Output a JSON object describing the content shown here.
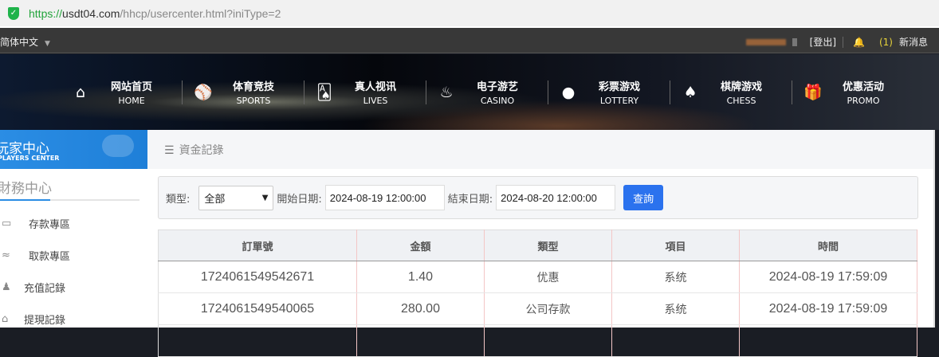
{
  "browser": {
    "url_protocol": "https://",
    "url_domain": "usdt04.com",
    "url_path": "/hhcp/usercenter.html?iniType=2"
  },
  "topbar": {
    "language": "简体中文",
    "logout": "[登出]",
    "message_count": "(1)",
    "messages": "新消息"
  },
  "nav": [
    {
      "cn": "网站首页",
      "en": "HOME",
      "icon": "home-icon",
      "glyph": "⌂"
    },
    {
      "cn": "体育竞技",
      "en": "SPORTS",
      "icon": "ball-icon",
      "glyph": "⚾"
    },
    {
      "cn": "真人视讯",
      "en": "LIVES",
      "icon": "cards-icon",
      "glyph": "🂡"
    },
    {
      "cn": "电子游艺",
      "en": "CASINO",
      "icon": "slot-icon",
      "glyph": "♨"
    },
    {
      "cn": "彩票游戏",
      "en": "LOTTERY",
      "icon": "lottery-balls-icon",
      "glyph": "●"
    },
    {
      "cn": "棋牌游戏",
      "en": "CHESS",
      "icon": "spade-icon",
      "glyph": "♠"
    },
    {
      "cn": "优惠活动",
      "en": "PROMO",
      "icon": "gift-icon",
      "glyph": "🎁"
    }
  ],
  "sidebar": {
    "header_cn": "玩家中心",
    "header_en": "PLAYERS CENTER",
    "section": "財務中心",
    "items": [
      {
        "label": "存款專區",
        "glyph": "▭"
      },
      {
        "label": "取款專區",
        "glyph": "≈"
      },
      {
        "label": "充值記錄",
        "glyph": "♟"
      },
      {
        "label": "提現記錄",
        "glyph": "⌂"
      }
    ]
  },
  "main": {
    "title": "資金記錄",
    "filter": {
      "type_label": "類型:",
      "type_value": "全部",
      "start_label": "開始日期:",
      "start_value": "2024-08-19 12:00:00",
      "end_label": "結束日期:",
      "end_value": "2024-08-20 12:00:00",
      "query": "查詢"
    },
    "table": {
      "headers": [
        "訂單號",
        "金額",
        "類型",
        "項目",
        "時間"
      ],
      "rows": [
        [
          "1724061549542671",
          "1.40",
          "优惠",
          "系统",
          "2024-08-19 17:59:09"
        ],
        [
          "1724061549540065",
          "280.00",
          "公司存款",
          "系统",
          "2024-08-19 17:59:09"
        ],
        [
          "",
          "",
          "",
          "",
          ""
        ]
      ]
    }
  }
}
